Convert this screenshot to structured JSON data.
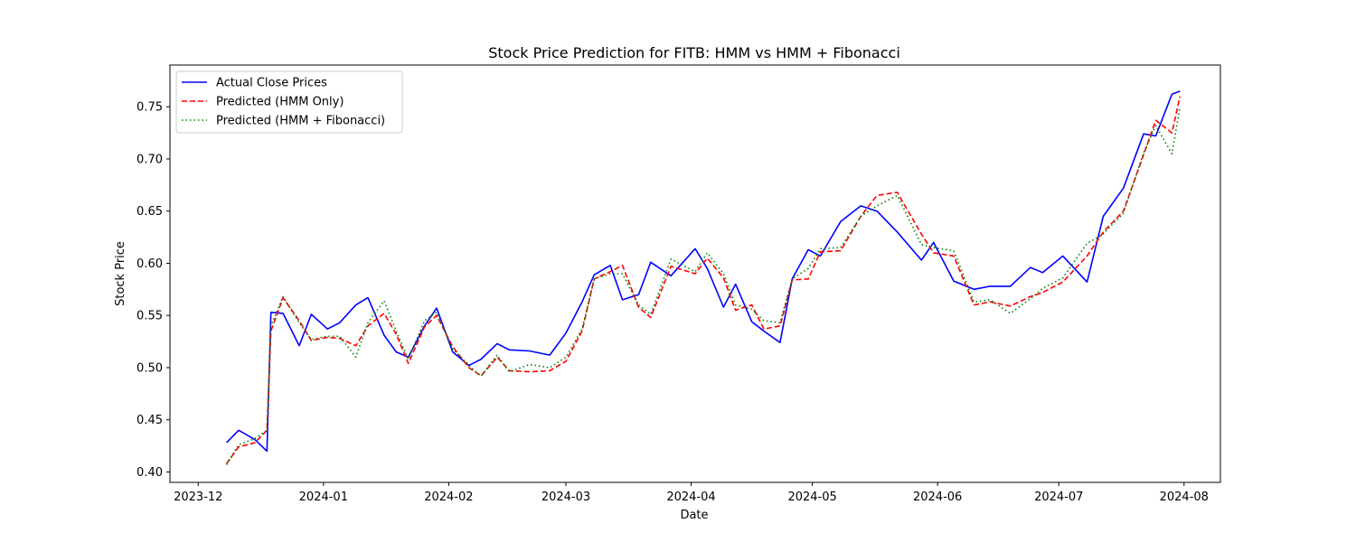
{
  "chart_data": {
    "type": "line",
    "title": "Stock Price Prediction for FITB: HMM vs HMM + Fibonacci",
    "xlabel": "Date",
    "ylabel": "Stock Price",
    "x_ticks": [
      "2023-12",
      "2024-01",
      "2024-02",
      "2024-03",
      "2024-04",
      "2024-05",
      "2024-06",
      "2024-07",
      "2024-08"
    ],
    "y_ticks": [
      "0.40",
      "0.45",
      "0.50",
      "0.55",
      "0.60",
      "0.65",
      "0.70",
      "0.75"
    ],
    "xlim": [
      "2023-11-24",
      "2024-08-10"
    ],
    "ylim": [
      0.39,
      0.79
    ],
    "grid": false,
    "legend_position": "top-left",
    "x": [
      "2023-12-08",
      "2023-12-11",
      "2023-12-15",
      "2023-12-18",
      "2023-12-19",
      "2023-12-22",
      "2023-12-26",
      "2023-12-29",
      "2024-01-02",
      "2024-01-05",
      "2024-01-09",
      "2024-01-12",
      "2024-01-16",
      "2024-01-19",
      "2024-01-22",
      "2024-01-26",
      "2024-01-29",
      "2024-02-02",
      "2024-02-06",
      "2024-02-09",
      "2024-02-13",
      "2024-02-16",
      "2024-02-21",
      "2024-02-26",
      "2024-03-01",
      "2024-03-05",
      "2024-03-08",
      "2024-03-12",
      "2024-03-15",
      "2024-03-19",
      "2024-03-22",
      "2024-03-27",
      "2024-04-02",
      "2024-04-05",
      "2024-04-09",
      "2024-04-12",
      "2024-04-16",
      "2024-04-19",
      "2024-04-23",
      "2024-04-26",
      "2024-04-30",
      "2024-05-03",
      "2024-05-08",
      "2024-05-13",
      "2024-05-17",
      "2024-05-22",
      "2024-05-28",
      "2024-05-31",
      "2024-06-05",
      "2024-06-10",
      "2024-06-14",
      "2024-06-19",
      "2024-06-24",
      "2024-06-27",
      "2024-07-02",
      "2024-07-08",
      "2024-07-12",
      "2024-07-17",
      "2024-07-22",
      "2024-07-25",
      "2024-07-29",
      "2024-07-31"
    ],
    "series": [
      {
        "name": "Actual Close Prices",
        "color": "#0000ff",
        "dash": "solid",
        "values": [
          0.428,
          0.44,
          0.431,
          0.42,
          0.553,
          0.552,
          0.521,
          0.551,
          0.537,
          0.543,
          0.56,
          0.567,
          0.531,
          0.515,
          0.51,
          0.54,
          0.557,
          0.515,
          0.502,
          0.508,
          0.523,
          0.517,
          0.516,
          0.512,
          0.533,
          0.563,
          0.589,
          0.598,
          0.565,
          0.57,
          0.601,
          0.588,
          0.614,
          0.595,
          0.558,
          0.58,
          0.544,
          0.535,
          0.524,
          0.585,
          0.613,
          0.607,
          0.64,
          0.655,
          0.65,
          0.63,
          0.603,
          0.62,
          0.583,
          0.575,
          0.578,
          0.578,
          0.596,
          0.591,
          0.607,
          0.582,
          0.645,
          0.672,
          0.724,
          0.722,
          0.762,
          0.765
        ]
      },
      {
        "name": "Predicted (HMM Only)",
        "color": "#ff0000",
        "dash": "dashed",
        "values": [
          0.408,
          0.424,
          0.428,
          0.44,
          0.535,
          0.567,
          0.545,
          0.526,
          0.529,
          0.528,
          0.521,
          0.54,
          0.552,
          0.532,
          0.504,
          0.539,
          0.55,
          0.52,
          0.5,
          0.492,
          0.51,
          0.497,
          0.496,
          0.497,
          0.506,
          0.535,
          0.585,
          0.592,
          0.598,
          0.558,
          0.548,
          0.597,
          0.59,
          0.605,
          0.586,
          0.555,
          0.56,
          0.537,
          0.54,
          0.584,
          0.585,
          0.611,
          0.612,
          0.645,
          0.665,
          0.668,
          0.628,
          0.61,
          0.607,
          0.56,
          0.563,
          0.559,
          0.568,
          0.572,
          0.582,
          0.607,
          0.63,
          0.65,
          0.704,
          0.737,
          0.725,
          0.76
        ]
      },
      {
        "name": "Predicted (HMM + Fibonacci)",
        "color": "#008000",
        "dash": "dotted",
        "values": [
          0.407,
          0.426,
          0.432,
          0.44,
          0.54,
          0.568,
          0.543,
          0.527,
          0.53,
          0.53,
          0.51,
          0.543,
          0.564,
          0.535,
          0.508,
          0.545,
          0.553,
          0.518,
          0.502,
          0.492,
          0.512,
          0.496,
          0.503,
          0.5,
          0.51,
          0.537,
          0.585,
          0.59,
          0.59,
          0.56,
          0.551,
          0.604,
          0.592,
          0.61,
          0.59,
          0.56,
          0.556,
          0.545,
          0.543,
          0.585,
          0.595,
          0.614,
          0.615,
          0.645,
          0.655,
          0.665,
          0.618,
          0.615,
          0.612,
          0.563,
          0.565,
          0.552,
          0.566,
          0.576,
          0.586,
          0.619,
          0.628,
          0.648,
          0.706,
          0.732,
          0.705,
          0.75
        ]
      }
    ]
  }
}
